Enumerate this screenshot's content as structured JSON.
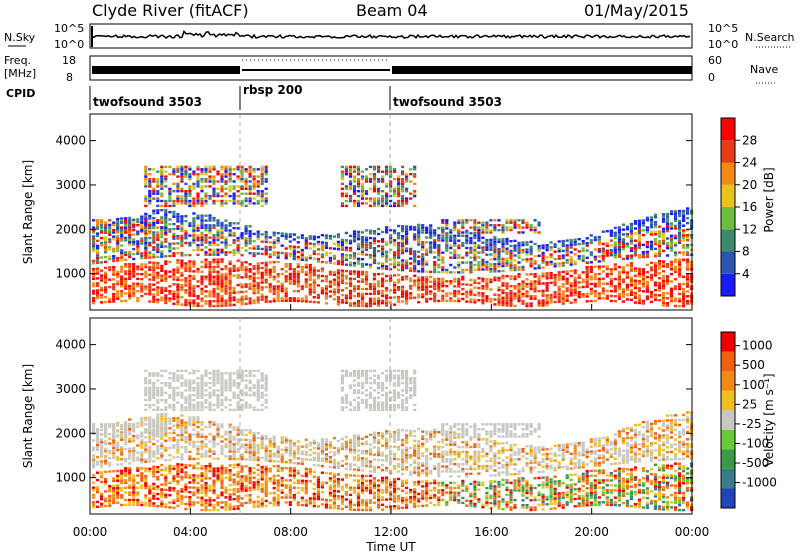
{
  "header": {
    "station": "Clyde River (fitACF)",
    "beam": "Beam 04",
    "date": "01/May/2015"
  },
  "panels": {
    "nsky": {
      "left_label": "N.Sky",
      "right_label": "N.Search",
      "tick_top": "10^5",
      "tick_bottom": "10^0"
    },
    "freq": {
      "left_label_1": "Freq.",
      "left_label_2": "[MHz]",
      "tick_top": "18",
      "tick_bottom": "8",
      "right_tick_top": "60",
      "right_tick_bottom": "0",
      "right_label": "Nave"
    },
    "cpid": {
      "label": "CPID",
      "segments": [
        {
          "name": "twofsound 3503",
          "start": 0,
          "end": 6
        },
        {
          "name": "rbsp 200",
          "start": 6,
          "end": 12
        },
        {
          "name": "twofsound 3503",
          "start": 12,
          "end": 24
        }
      ]
    }
  },
  "chart_data": [
    {
      "type": "heatmap",
      "title": "",
      "ylabel": "Slant Range [km]",
      "xlabel": "Time UT",
      "xlim": [
        0,
        24
      ],
      "ylim": [
        180,
        4600
      ],
      "yticks": [
        1000,
        2000,
        3000,
        4000
      ],
      "xticks": [
        "00:00",
        "04:00",
        "08:00",
        "12:00",
        "16:00",
        "20:00",
        "00:00"
      ],
      "colorbar": {
        "label": "Power [dB]",
        "ticks": [
          "4",
          "8",
          "12",
          "16",
          "20",
          "24",
          "28"
        ],
        "colors": [
          "#1a1aff",
          "#2a55b0",
          "#3d8a6f",
          "#6cbd3b",
          "#e9c21a",
          "#f08a14",
          "#e83c14",
          "#ff0000"
        ]
      }
    },
    {
      "type": "heatmap",
      "title": "",
      "ylabel": "Slant Range [km]",
      "xlabel": "Time UT",
      "xlim": [
        0,
        24
      ],
      "ylim": [
        180,
        4600
      ],
      "yticks": [
        1000,
        2000,
        3000,
        4000
      ],
      "xticks": [
        "00:00",
        "04:00",
        "08:00",
        "12:00",
        "16:00",
        "20:00",
        "00:00"
      ],
      "colorbar": {
        "label": "Velocity [m s⁻¹]",
        "ticks": [
          "1000",
          "500",
          "100",
          "25",
          "-25",
          "-100",
          "-500",
          "-1000"
        ],
        "colors": [
          "#2244bb",
          "#3a7a8a",
          "#3a9a4a",
          "#66cc33",
          "#c8c8c0",
          "#f0c020",
          "#f08a14",
          "#f06010",
          "#ee0000"
        ]
      }
    }
  ],
  "time_label": "Time UT"
}
